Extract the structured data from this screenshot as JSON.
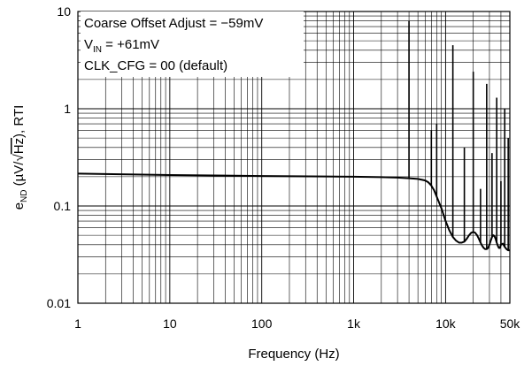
{
  "chart_data": {
    "type": "line",
    "x_scale": "log",
    "y_scale": "log",
    "xlim": [
      1,
      50000
    ],
    "ylim": [
      0.01,
      10
    ],
    "grid": true,
    "xlabel": "Frequency (Hz)",
    "ylabel": {
      "base": "e",
      "sub": "ND",
      "mid": " (µV/√",
      "over": "Hz",
      "tail": "), RTI"
    },
    "x_ticks": [
      {
        "value": 1,
        "label": "1"
      },
      {
        "value": 10,
        "label": "10"
      },
      {
        "value": 100,
        "label": "100"
      },
      {
        "value": 1000,
        "label": "1k"
      },
      {
        "value": 10000,
        "label": "10k"
      },
      {
        "value": 50000,
        "label": "50k"
      }
    ],
    "y_ticks": [
      {
        "value": 0.01,
        "label": "0.01"
      },
      {
        "value": 0.1,
        "label": "0.1"
      },
      {
        "value": 1,
        "label": "1"
      },
      {
        "value": 10,
        "label": "10"
      }
    ],
    "annotations": {
      "line1": "Coarse Offset Adjust = −59mV",
      "line2_base": "V",
      "line2_sub": "IN",
      "line2_tail": " = +61mV",
      "line3": "CLK_CFG = 00 (default)"
    },
    "series": [
      {
        "x": [
          1,
          2,
          5,
          10,
          50,
          100,
          500,
          1000,
          2000,
          3000,
          4000,
          5000,
          6000,
          6500,
          7000,
          7500,
          8000,
          9000,
          10000,
          11000,
          12000,
          13000,
          14000,
          15000,
          16000,
          17000,
          18000,
          19000,
          20000,
          21000,
          22000,
          23000,
          24000,
          25000,
          26000,
          27000,
          28000,
          29000,
          30000,
          31000,
          32000,
          33000,
          34000,
          35000,
          36000,
          37000,
          38000,
          39000,
          40000,
          42000,
          44000,
          46000,
          48000,
          50000
        ],
        "y": [
          0.215,
          0.213,
          0.21,
          0.208,
          0.205,
          0.203,
          0.201,
          0.2,
          0.198,
          0.196,
          0.193,
          0.19,
          0.183,
          0.175,
          0.162,
          0.145,
          0.125,
          0.095,
          0.07,
          0.056,
          0.048,
          0.044,
          0.042,
          0.042,
          0.043,
          0.046,
          0.05,
          0.053,
          0.054,
          0.053,
          0.05,
          0.046,
          0.042,
          0.039,
          0.037,
          0.036,
          0.036,
          0.037,
          0.04,
          0.044,
          0.048,
          0.05,
          0.049,
          0.046,
          0.042,
          0.039,
          0.037,
          0.037,
          0.04,
          0.041,
          0.038,
          0.036,
          0.035,
          0.035
        ]
      }
    ],
    "spurs": [
      {
        "x": 4000,
        "y": 8.0
      },
      {
        "x": 7000,
        "y": 0.6
      },
      {
        "x": 8000,
        "y": 0.7
      },
      {
        "x": 12000,
        "y": 4.5
      },
      {
        "x": 16000,
        "y": 0.4
      },
      {
        "x": 20000,
        "y": 2.4
      },
      {
        "x": 24000,
        "y": 0.15
      },
      {
        "x": 28000,
        "y": 1.8
      },
      {
        "x": 32000,
        "y": 0.35
      },
      {
        "x": 36000,
        "y": 1.3
      },
      {
        "x": 40000,
        "y": 0.18
      },
      {
        "x": 44000,
        "y": 1.0
      },
      {
        "x": 48000,
        "y": 0.5
      }
    ]
  }
}
